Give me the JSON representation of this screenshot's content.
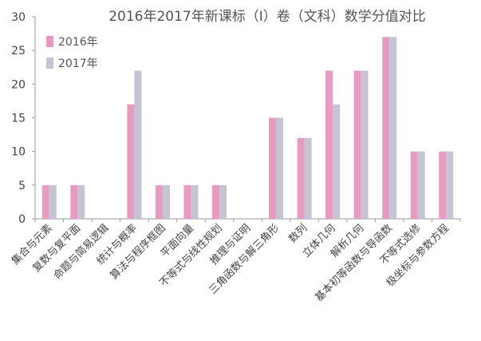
{
  "chart_data": {
    "type": "bar",
    "title": "2016年2017年新课标（Ⅰ）卷（文科）数学分值对比",
    "xlabel": "",
    "ylabel": "",
    "ylim": [
      0,
      30
    ],
    "yticks": [
      0,
      5,
      10,
      15,
      20,
      25,
      30
    ],
    "grid": false,
    "legend_position": "top-left",
    "categories": [
      "集合与元素",
      "复数与复平面",
      "命题与简易逻辑",
      "统计与概率",
      "算法与程序框图",
      "平面向量",
      "不等式与线性规划",
      "推理与证明",
      "三角函数与解三角形",
      "数列",
      "立体几何",
      "解析几何",
      "基本初等函数与导函数",
      "不等式选修",
      "极坐标与参数方程"
    ],
    "series": [
      {
        "name": "2016年",
        "color": "#e89bc1",
        "values": [
          5,
          5,
          0,
          17,
          5,
          5,
          5,
          0,
          15,
          12,
          22,
          22,
          27,
          10,
          10
        ]
      },
      {
        "name": "2017年",
        "color": "#c6c3d3",
        "values": [
          5,
          5,
          0,
          22,
          5,
          5,
          5,
          0,
          15,
          12,
          17,
          22,
          27,
          10,
          10
        ]
      }
    ]
  }
}
